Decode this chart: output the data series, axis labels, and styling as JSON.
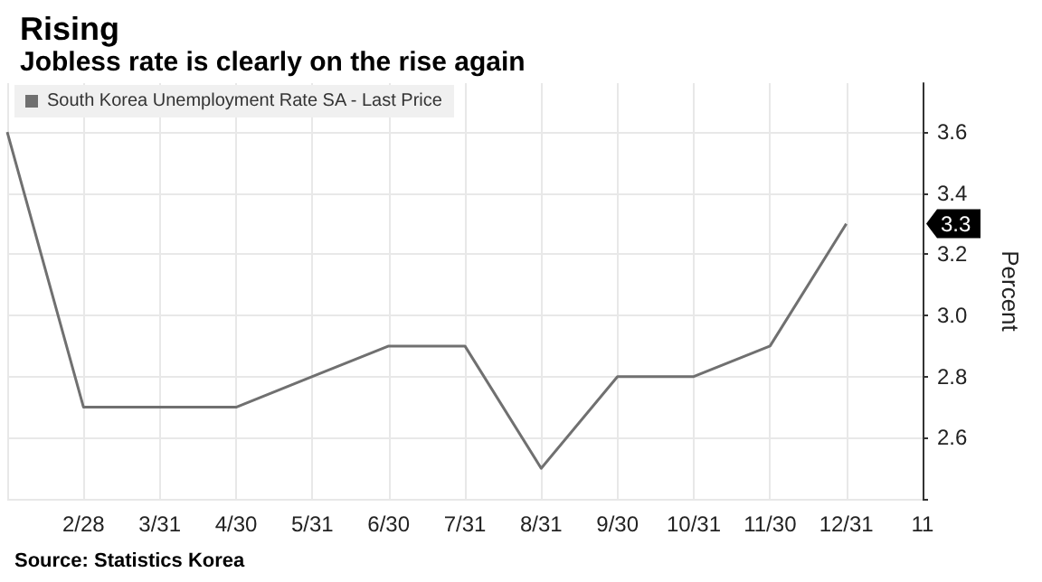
{
  "chart_data": {
    "type": "line",
    "title": "Rising",
    "subtitle": "Jobless rate is clearly on the rise again",
    "ylabel": "Percent",
    "categories": [
      null,
      "2/28",
      "3/31",
      "4/30",
      "5/31",
      "6/30",
      "7/31",
      "8/31",
      "9/30",
      "10/31",
      "11/30",
      "12/31",
      "11"
    ],
    "series": [
      {
        "name": "South Korea Unemployment Rate SA - Last Price",
        "color": "#707070",
        "values": [
          3.6,
          2.7,
          2.7,
          2.7,
          2.8,
          2.9,
          2.9,
          2.5,
          2.8,
          2.8,
          2.9,
          3.3,
          null
        ]
      }
    ],
    "ylim": [
      2.4,
      3.76
    ],
    "yticks": [
      {
        "value": 2.4,
        "label": null
      },
      2.6,
      2.8,
      {
        "value": 3.0,
        "label": "3.0"
      },
      3.2,
      3.4,
      3.6
    ],
    "grid": true,
    "legend": "top left",
    "marker": "none",
    "line_style": "solid",
    "annotations": [
      {
        "text": "3.3",
        "y": 3.3
      },
      "Source: Statistics Korea"
    ]
  }
}
